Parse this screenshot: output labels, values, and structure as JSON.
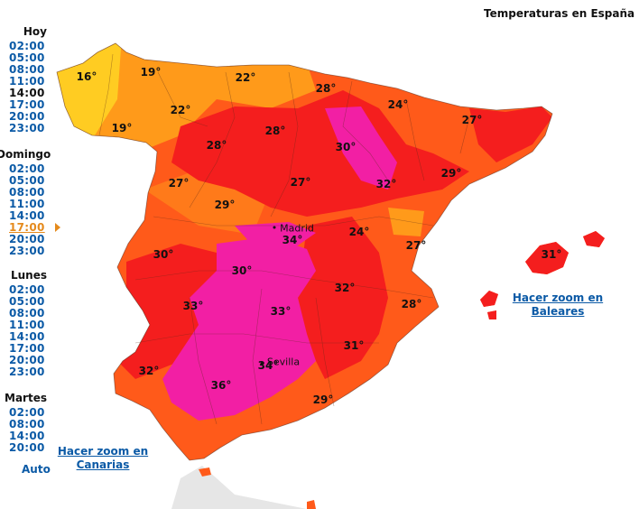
{
  "title": "Temperaturas en España",
  "time_groups": [
    {
      "day": "Hoy",
      "times": [
        "02:00",
        "05:00",
        "08:00",
        "11:00",
        "14:00",
        "17:00",
        "20:00",
        "23:00"
      ],
      "current_index": 4
    },
    {
      "day": "Domingo",
      "times": [
        "02:00",
        "05:00",
        "08:00",
        "11:00",
        "14:00",
        "17:00",
        "20:00",
        "23:00"
      ],
      "selected_index": 5
    },
    {
      "day": "Lunes",
      "times": [
        "02:00",
        "05:00",
        "08:00",
        "11:00",
        "14:00",
        "17:00",
        "20:00",
        "23:00"
      ]
    },
    {
      "day": "Martes",
      "times": [
        "02:00",
        "08:00",
        "14:00",
        "20:00"
      ]
    }
  ],
  "auto_label": "Auto",
  "zoom_baleares": [
    "Hacer zoom en",
    "Baleares"
  ],
  "zoom_canarias": [
    "Hacer zoom en",
    "Canarias"
  ],
  "cities": [
    "Madrid",
    "Sevilla"
  ],
  "temperatures": [
    "16°",
    "19°",
    "22°",
    "28°",
    "24°",
    "27°",
    "22°",
    "19°",
    "28°",
    "28°",
    "30°",
    "32°",
    "29°",
    "27°",
    "27°",
    "29°",
    "34°",
    "24°",
    "27°",
    "31°",
    "30°",
    "30°",
    "32°",
    "33°",
    "33°",
    "28°",
    "31°",
    "32°",
    "34°",
    "36°",
    "29°"
  ],
  "colors": {
    "link": "#0b5aa6",
    "selected_time": "#e58a1c",
    "temp_16_19": "#ffcc22",
    "temp_19_22": "#ff9a1a",
    "temp_22_28": "#ff5a1a",
    "temp_28_32": "#f41e1e",
    "temp_32_plus": "#f21fa4"
  }
}
